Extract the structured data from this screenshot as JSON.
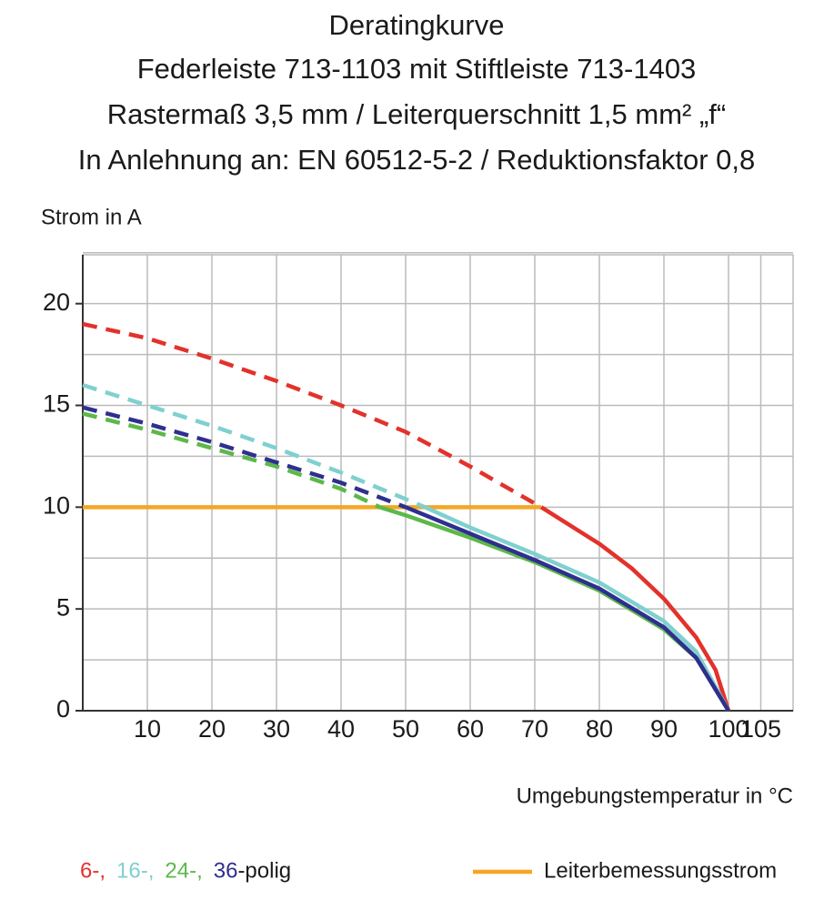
{
  "chart_data": {
    "type": "line",
    "title": "Deratingkurve",
    "subtitles": [
      "Federleiste 713-1103 mit Stiftleiste 713-1403",
      "Rastermaß 3,5 mm / Leiterquerschnitt 1,5 mm² „f“",
      "In Anlehnung an: EN 60512-5-2 / Reduktionsfaktor 0,8"
    ],
    "y_label": "Strom in A",
    "x_label": "Umgebungstemperatur in °C",
    "xlim": [
      0,
      110
    ],
    "ylim": [
      0,
      22.4
    ],
    "xticks": [
      10,
      20,
      30,
      40,
      50,
      60,
      70,
      80,
      90,
      100,
      105
    ],
    "yticks": [
      0,
      5,
      10,
      15,
      20
    ],
    "ygrid": [
      2.5,
      5,
      7.5,
      10,
      12.5,
      15,
      17.5,
      20,
      22.5
    ],
    "grid": true,
    "series": [
      {
        "name": "6-,",
        "color": "#e2322b",
        "x": [
          0,
          10,
          20,
          30,
          40,
          50,
          60,
          71,
          80,
          85,
          90,
          95,
          98,
          100
        ],
        "values": [
          19.0,
          18.3,
          17.3,
          16.2,
          15.0,
          13.7,
          12.0,
          10,
          8.2,
          7.0,
          5.5,
          3.6,
          2.0,
          0
        ]
      },
      {
        "name": "16-,",
        "color": "#80d0d0",
        "x": [
          0,
          10,
          20,
          30,
          40,
          50,
          53,
          60,
          70,
          80,
          90,
          95,
          100
        ],
        "values": [
          16.0,
          15.0,
          14.0,
          12.9,
          11.7,
          10.4,
          10,
          9.0,
          7.7,
          6.3,
          4.4,
          2.9,
          0
        ]
      },
      {
        "name": "24-,",
        "color": "#5cb84a",
        "x": [
          0,
          10,
          20,
          30,
          40,
          46,
          50,
          60,
          70,
          80,
          90,
          95,
          100
        ],
        "values": [
          14.6,
          13.8,
          12.9,
          12.0,
          10.9,
          10,
          9.6,
          8.5,
          7.3,
          5.9,
          4.0,
          2.6,
          0
        ]
      },
      {
        "name": "36",
        "color": "#2e2f8f",
        "x": [
          0,
          10,
          20,
          30,
          40,
          50,
          60,
          70,
          80,
          90,
          95,
          100
        ],
        "values": [
          14.9,
          14.1,
          13.2,
          12.2,
          11.2,
          10,
          8.7,
          7.4,
          6.0,
          4.1,
          2.6,
          0
        ]
      }
    ],
    "legend_suffix": "-polig",
    "rated_current": {
      "name": "Leiterbemessungsstrom",
      "color": "#f5a623",
      "x": [
        0,
        71
      ],
      "values": [
        10,
        10
      ]
    }
  }
}
